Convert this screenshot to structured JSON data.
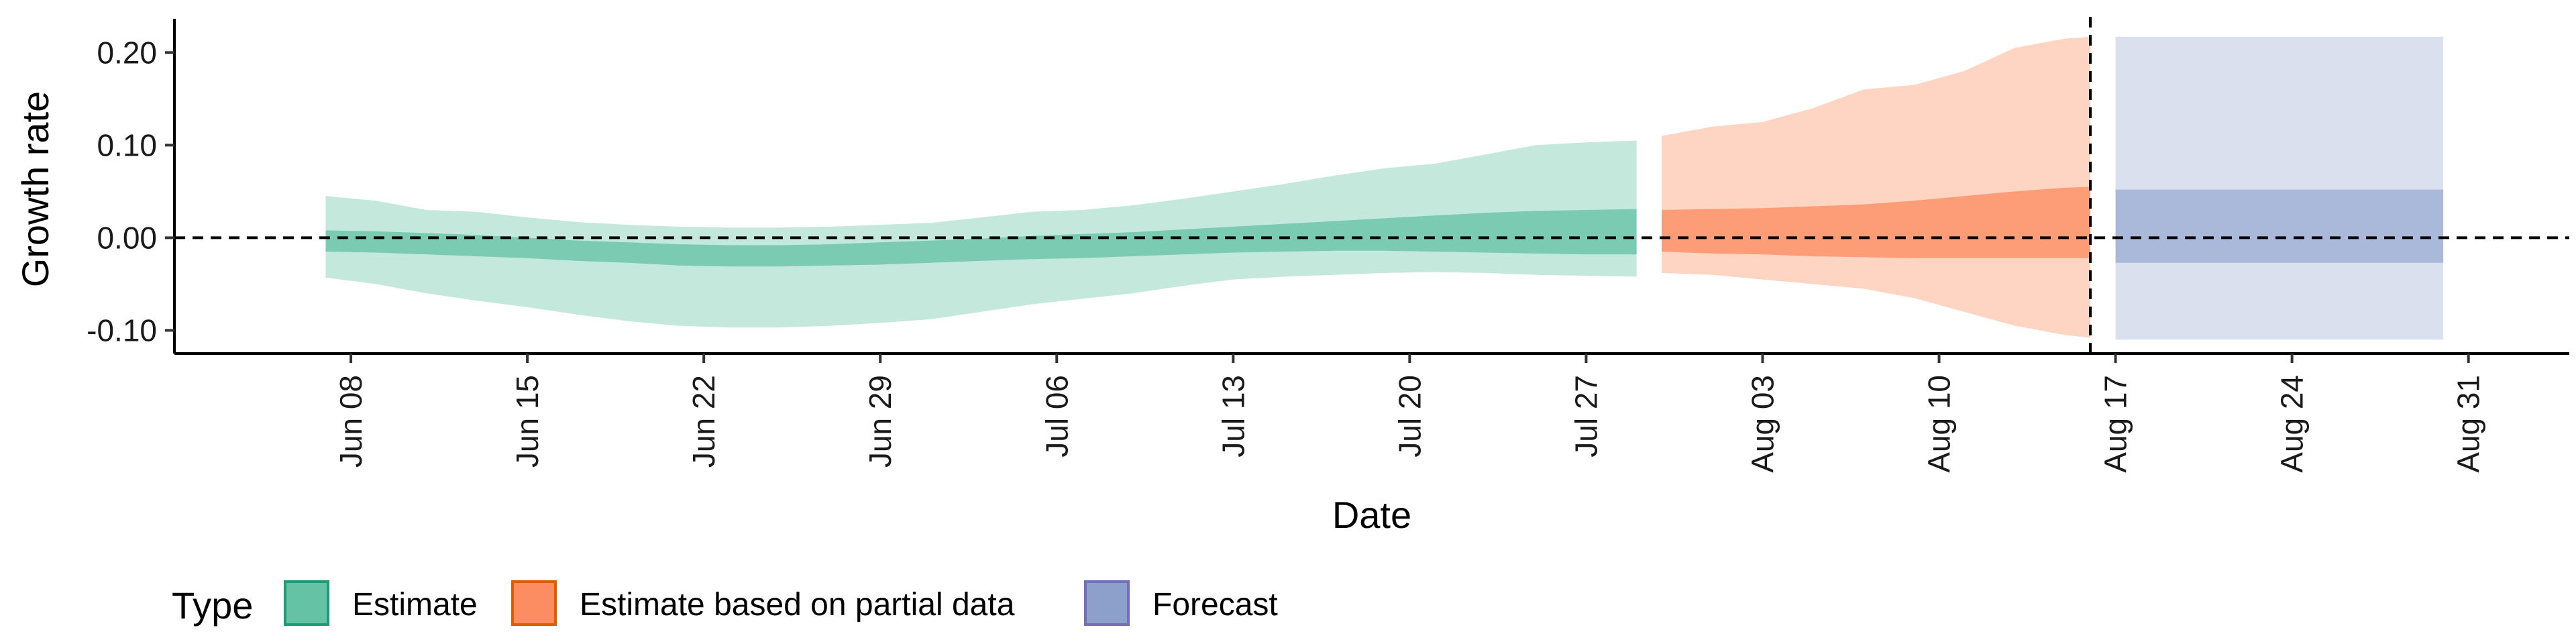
{
  "chart_data": {
    "type": "area",
    "xlabel": "Date",
    "ylabel": "Growth rate",
    "x_range": [
      "2020-06-01",
      "2020-09-04"
    ],
    "ylim": [
      -0.125,
      0.235
    ],
    "y_ticks": [
      0.2,
      0.1,
      0.0,
      -0.1
    ],
    "y_tick_labels": [
      "0.20",
      "0.10",
      "0.00",
      "-0.10"
    ],
    "x_ticks": [
      "2020-06-08",
      "2020-06-15",
      "2020-06-22",
      "2020-06-29",
      "2020-07-06",
      "2020-07-13",
      "2020-07-20",
      "2020-07-27",
      "2020-08-03",
      "2020-08-10",
      "2020-08-17",
      "2020-08-24",
      "2020-08-31"
    ],
    "x_tick_labels": [
      "Jun 08",
      "Jun 15",
      "Jun 22",
      "Jun 29",
      "Jul 06",
      "Jul 13",
      "Jul 20",
      "Jul 27",
      "Aug 03",
      "Aug 10",
      "Aug 17",
      "Aug 24",
      "Aug 31"
    ],
    "reference_line_y": 0.0,
    "vertical_line_x": "2020-08-16",
    "grid": false,
    "legend": {
      "title": "Type",
      "position": "bottom-left",
      "entries": [
        {
          "label": "Estimate",
          "color": "#66c2a5",
          "border": "#1b9e77"
        },
        {
          "label": "Estimate based on partial data",
          "color": "#fc8d62",
          "border": "#d95f02"
        },
        {
          "label": "Forecast",
          "color": "#8da0cb",
          "border": "#7570b3"
        }
      ]
    },
    "series": [
      {
        "name": "Estimate",
        "color": "#66c2a5",
        "x": [
          "2020-06-07",
          "2020-06-09",
          "2020-06-11",
          "2020-06-13",
          "2020-06-15",
          "2020-06-17",
          "2020-06-19",
          "2020-06-21",
          "2020-06-23",
          "2020-06-25",
          "2020-06-27",
          "2020-06-29",
          "2020-07-01",
          "2020-07-03",
          "2020-07-05",
          "2020-07-07",
          "2020-07-09",
          "2020-07-11",
          "2020-07-13",
          "2020-07-15",
          "2020-07-17",
          "2020-07-19",
          "2020-07-21",
          "2020-07-23",
          "2020-07-25",
          "2020-07-27",
          "2020-07-29"
        ],
        "lower_90": [
          -0.043,
          -0.05,
          -0.06,
          -0.068,
          -0.075,
          -0.083,
          -0.09,
          -0.095,
          -0.097,
          -0.097,
          -0.095,
          -0.092,
          -0.088,
          -0.08,
          -0.072,
          -0.066,
          -0.06,
          -0.052,
          -0.045,
          -0.042,
          -0.04,
          -0.038,
          -0.037,
          -0.038,
          -0.04,
          -0.041,
          -0.042
        ],
        "upper_90": [
          0.045,
          0.04,
          0.03,
          0.028,
          0.022,
          0.017,
          0.014,
          0.012,
          0.011,
          0.011,
          0.012,
          0.014,
          0.016,
          0.022,
          0.028,
          0.03,
          0.035,
          0.042,
          0.05,
          0.058,
          0.067,
          0.075,
          0.08,
          0.09,
          0.1,
          0.103,
          0.105
        ],
        "lower_50": [
          -0.015,
          -0.016,
          -0.018,
          -0.02,
          -0.022,
          -0.025,
          -0.027,
          -0.03,
          -0.031,
          -0.031,
          -0.03,
          -0.029,
          -0.027,
          -0.025,
          -0.023,
          -0.022,
          -0.02,
          -0.018,
          -0.016,
          -0.015,
          -0.014,
          -0.014,
          -0.015,
          -0.016,
          -0.017,
          -0.018,
          -0.018
        ],
        "upper_50": [
          0.008,
          0.007,
          0.005,
          0.003,
          0.0,
          -0.003,
          -0.005,
          -0.007,
          -0.008,
          -0.008,
          -0.007,
          -0.005,
          -0.003,
          -0.001,
          0.002,
          0.004,
          0.006,
          0.009,
          0.012,
          0.015,
          0.018,
          0.021,
          0.024,
          0.027,
          0.029,
          0.03,
          0.031
        ]
      },
      {
        "name": "Estimate based on partial data",
        "color": "#fc8d62",
        "x": [
          "2020-07-30",
          "2020-08-01",
          "2020-08-03",
          "2020-08-05",
          "2020-08-07",
          "2020-08-09",
          "2020-08-11",
          "2020-08-13",
          "2020-08-15",
          "2020-08-16"
        ],
        "lower_90": [
          -0.038,
          -0.04,
          -0.045,
          -0.05,
          -0.055,
          -0.065,
          -0.08,
          -0.095,
          -0.105,
          -0.108
        ],
        "upper_90": [
          0.11,
          0.12,
          0.125,
          0.14,
          0.16,
          0.165,
          0.18,
          0.205,
          0.215,
          0.217
        ],
        "lower_50": [
          -0.015,
          -0.017,
          -0.018,
          -0.02,
          -0.021,
          -0.022,
          -0.022,
          -0.022,
          -0.022,
          -0.022
        ],
        "upper_50": [
          0.03,
          0.031,
          0.032,
          0.034,
          0.036,
          0.04,
          0.045,
          0.05,
          0.054,
          0.055
        ]
      },
      {
        "name": "Forecast",
        "color": "#8da0cb",
        "x": [
          "2020-08-17",
          "2020-08-30"
        ],
        "lower_90": [
          -0.11,
          -0.11
        ],
        "upper_90": [
          0.217,
          0.217
        ],
        "lower_50": [
          -0.027,
          -0.027
        ],
        "upper_50": [
          0.052,
          0.052
        ]
      }
    ]
  }
}
